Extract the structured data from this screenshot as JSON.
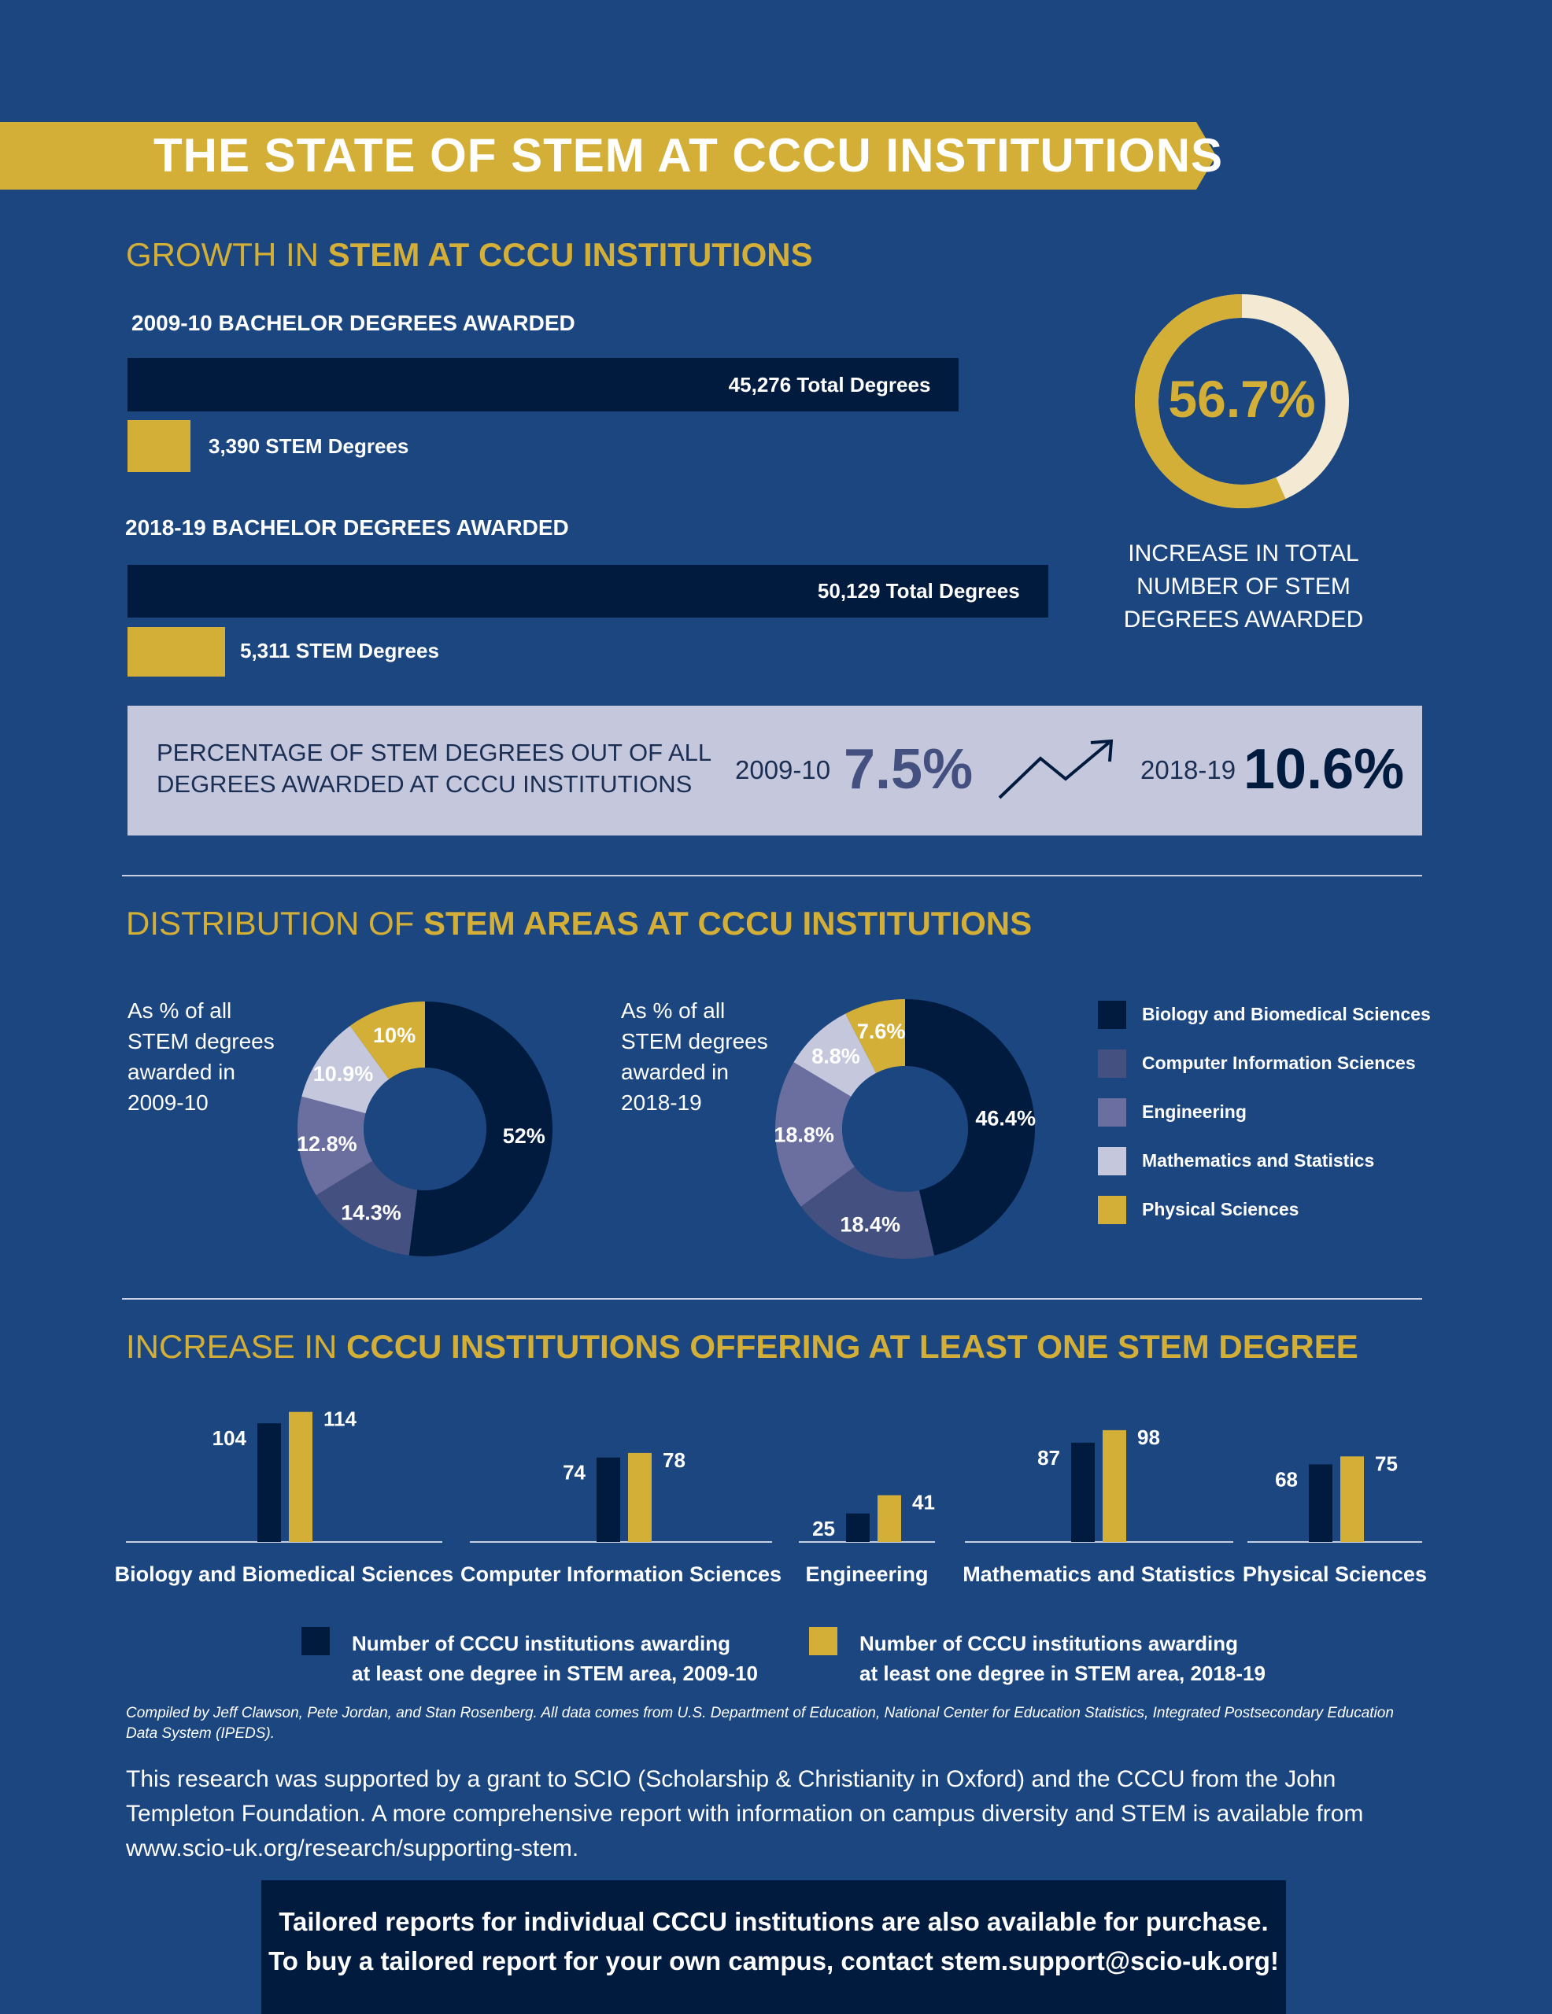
{
  "title": "THE STATE OF STEM AT CCCU INSTITUTIONS",
  "growth": {
    "heading_prefix": "GROWTH IN",
    "heading_bold": "STEM AT CCCU INSTITUTIONS",
    "year1_label": "2009-10 BACHELOR DEGREES AWARDED",
    "year1_total_text": "45,276 Total Degrees",
    "year1_stem_text": "3,390 STEM Degrees",
    "year2_label": "2018-19 BACHELOR DEGREES AWARDED",
    "year2_total_text": "50,129 Total Degrees",
    "year2_stem_text": "5,311 STEM Degrees",
    "increase_pct": "56.7%",
    "increase_caption_1": "INCREASE IN TOTAL",
    "increase_caption_2": "NUMBER OF STEM",
    "increase_caption_3": "DEGREES AWARDED"
  },
  "percentage": {
    "label_1": "PERCENTAGE OF STEM DEGREES OUT OF ALL",
    "label_2": "DEGREES AWARDED AT CCCU INSTITUTIONS",
    "year1": "2009-10",
    "value1": "7.5%",
    "year2": "2018-19",
    "value2": "10.6%"
  },
  "distribution": {
    "heading_prefix": "DISTRIBUTION OF",
    "heading_bold": "STEM AREAS AT CCCU INSTITUTIONS",
    "note1": [
      "As % of all",
      "STEM degrees",
      "awarded in",
      "2009-10"
    ],
    "note2": [
      "As % of all",
      "STEM degrees",
      "awarded in",
      "2018-19"
    ]
  },
  "institutions": {
    "heading_prefix": "INCREASE IN",
    "heading_bold": "CCCU INSTITUTIONS OFFERING AT LEAST ONE STEM DEGREE",
    "legend1_line1": "Number of CCCU institutions awarding",
    "legend1_line2": "at least one degree in STEM area, 2009-10",
    "legend2_line1": "Number of CCCU institutions awarding",
    "legend2_line2": "at least one degree in STEM area, 2018-19"
  },
  "footer": {
    "footnote": "Compiled by Jeff Clawson, Pete Jordan, and Stan Rosenberg. All data comes from U.S. Department of Education, National Center for Education Statistics, Integrated Postsecondary Education Data System (IPEDS).",
    "support_1": "This research was supported by a grant to SCIO (Scholarship & Christianity in Oxford) and the CCCU from the John",
    "support_2": "Templeton Foundation. A more comprehensive report with information on campus diversity and STEM is available from",
    "support_3": "www.scio-uk.org/research/supporting-stem.",
    "cta_1": "Tailored reports for individual CCCU institutions are also available for purchase.",
    "cta_2": "To buy a tailored report for your own campus, contact stem.support@scio-uk.org!"
  },
  "colors": {
    "background": "#1b4680",
    "navy": "#011b3f",
    "gold": "#d4af37",
    "cream": "#f4ead4",
    "slate": "#44507f",
    "lavender": "#6b6f9f",
    "pale": "#c5c8dd"
  },
  "chart_data": [
    {
      "type": "bar",
      "orientation": "horizontal",
      "categories": [
        "2009-10 Total",
        "2009-10 STEM",
        "2018-19 Total",
        "2018-19 STEM"
      ],
      "values": [
        45276,
        3390,
        50129,
        5311
      ],
      "xlim": [
        0,
        60000
      ]
    },
    {
      "type": "pie",
      "style": "ring",
      "values": [
        56.7,
        43.3
      ],
      "label": "56.7%"
    },
    {
      "type": "pie",
      "style": "donut",
      "year": "2009-10",
      "categories": [
        "Biology and Biomedical Sciences",
        "Computer Information Sciences",
        "Engineering",
        "Mathematics and Statistics",
        "Physical Sciences"
      ],
      "values": [
        52,
        14.3,
        12.8,
        10.9,
        10
      ],
      "labels": [
        "52%",
        "14.3%",
        "12.8%",
        "10.9%",
        "10%"
      ]
    },
    {
      "type": "pie",
      "style": "donut",
      "year": "2018-19",
      "categories": [
        "Biology and Biomedical Sciences",
        "Computer Information Sciences",
        "Engineering",
        "Mathematics and Statistics",
        "Physical Sciences"
      ],
      "values": [
        46.4,
        18.4,
        18.8,
        8.8,
        7.6
      ],
      "labels": [
        "46.4%",
        "18.4%",
        "18.8%",
        "8.8%",
        "7.6%"
      ],
      "legend": [
        "Biology and Biomedical Sciences",
        "Computer Information Sciences",
        "Engineering",
        "Mathematics and Statistics",
        "Physical Sciences"
      ],
      "legend_position": "right"
    },
    {
      "type": "bar",
      "categories": [
        "Biology and Biomedical Sciences",
        "Computer Information Sciences",
        "Engineering",
        "Mathematics and Statistics",
        "Physical Sciences"
      ],
      "series": [
        {
          "values": [
            104,
            74,
            25,
            87,
            68
          ]
        },
        {
          "values": [
            114,
            78,
            41,
            98,
            75
          ]
        }
      ],
      "ylim": [
        0,
        120
      ],
      "legend_position": "bottom"
    }
  ]
}
